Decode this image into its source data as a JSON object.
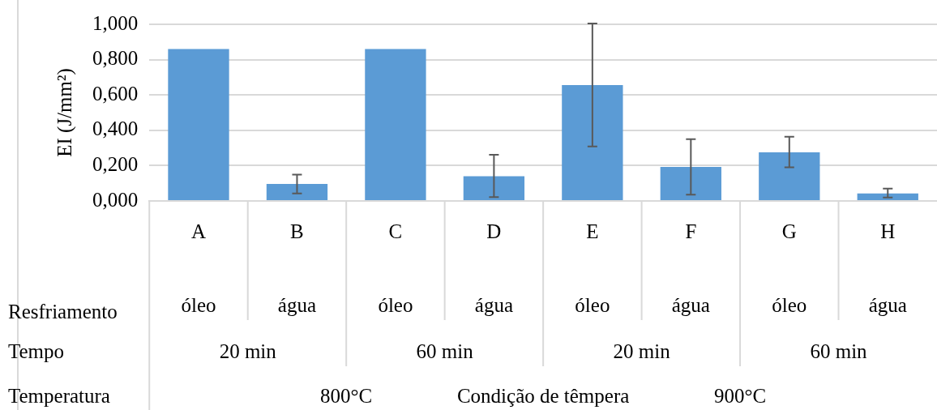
{
  "chart_data": {
    "type": "bar",
    "ylabel": "EI (J/mm²)",
    "categories": [
      "A",
      "B",
      "C",
      "D",
      "E",
      "F",
      "G",
      "H"
    ],
    "values": [
      0.86,
      0.096,
      0.86,
      0.14,
      0.656,
      0.193,
      0.275,
      0.042
    ],
    "errors": [
      null,
      [
        0.043,
        0.149
      ],
      null,
      [
        0.022,
        0.261
      ],
      [
        0.309,
        1.005
      ],
      [
        0.036,
        0.35
      ],
      [
        0.19,
        0.364
      ],
      [
        0.019,
        0.07
      ]
    ],
    "color": "#5b9bd5",
    "ylim": [
      0,
      1
    ],
    "yticks": [
      {
        "value": 0,
        "label": "0,000"
      },
      {
        "value": 0.2,
        "label": "0,200"
      },
      {
        "value": 0.4,
        "label": "0,400"
      },
      {
        "value": 0.6,
        "label": "0,600"
      },
      {
        "value": 0.8,
        "label": "0,800"
      },
      {
        "value": 1,
        "label": "1,000"
      }
    ],
    "grid": "y",
    "legend": false,
    "annotations": [
      "Resfriamento",
      "Tempo",
      "Temperatura",
      "óleo",
      "água",
      "óleo",
      "água",
      "óleo",
      "água",
      "óleo",
      "água",
      "20 min",
      "60 min",
      "20 min",
      "60 min",
      "800°C",
      "Condição de têmpera",
      "900°C"
    ]
  }
}
